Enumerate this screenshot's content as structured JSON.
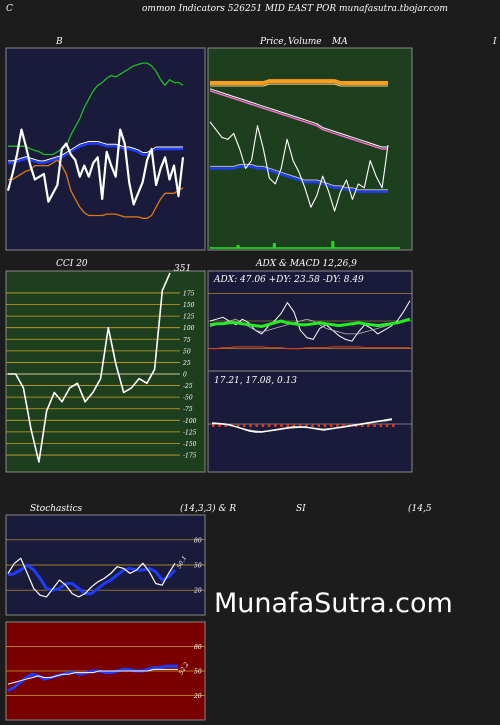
{
  "header": {
    "left_letter": "C",
    "title": "ommon  Indicators 526251 MID EAST POR munafasutra.tbojar.com"
  },
  "panels": {
    "bollinger": {
      "title": "B"
    },
    "price": {
      "title": "Price,",
      "title2": "Volume",
      "title3": "MA",
      "edge_letter": "I"
    },
    "cci": {
      "title": "CCI 20",
      "last_value": "351"
    },
    "adx": {
      "title": "ADX  & MACD 12,26,9",
      "readout": "ADX: 47.06   +DY: 23.58   -DY: 8.49"
    },
    "macd": {
      "readout": "17.21,  17.08,  0.13"
    },
    "stochastics": {
      "title": "Stochastics",
      "params": "(14,3,3) & R",
      "last_value": "50.1"
    },
    "rsi": {
      "title": "SI",
      "params": "(14,5",
      "last_value": "52.2"
    }
  },
  "watermark": "MunafaSutra.com",
  "chart_data": [
    {
      "type": "line",
      "name": "bollinger",
      "series": [
        {
          "values": [
            48,
            48,
            50,
            52,
            54,
            55,
            58,
            58,
            58,
            58,
            60,
            62,
            58,
            52,
            40,
            34,
            28,
            24,
            22,
            22,
            22,
            22,
            23,
            23,
            23,
            22,
            21,
            21,
            21,
            21,
            20,
            20,
            22,
            28,
            34,
            38,
            38,
            38,
            40,
            42
          ]
        },
        {
          "values": [
            60,
            60,
            61,
            62,
            63,
            62,
            61,
            60,
            60,
            61,
            62,
            63,
            64,
            66,
            68,
            70,
            72,
            73,
            74,
            74,
            74,
            73,
            72,
            72,
            72,
            71,
            70,
            70,
            69,
            68,
            66,
            66,
            68,
            70,
            70,
            70,
            70,
            70,
            70,
            70
          ]
        },
        {
          "values": [
            72,
            72,
            72,
            72,
            72,
            70,
            69,
            68,
            66,
            66,
            66,
            68,
            70,
            72,
            80,
            86,
            92,
            100,
            106,
            112,
            116,
            118,
            121,
            123,
            122,
            124,
            126,
            128,
            130,
            131,
            132,
            132,
            130,
            126,
            120,
            116,
            120,
            118,
            118,
            116
          ]
        },
        {
          "values": [
            40,
            52,
            66,
            84,
            72,
            58,
            48,
            50,
            52,
            32,
            38,
            44,
            70,
            74,
            66,
            62,
            50,
            58,
            50,
            60,
            64,
            34,
            68,
            58,
            50,
            84,
            74,
            46,
            30,
            38,
            46,
            62,
            70,
            44,
            56,
            64,
            48,
            58,
            36,
            64
          ]
        }
      ]
    },
    {
      "type": "line",
      "name": "price-volume-ma",
      "series": [
        {
          "values": [
            84,
            84,
            84,
            84,
            84,
            84,
            84,
            84,
            84,
            84,
            85,
            85,
            85,
            85,
            85,
            85,
            85,
            85,
            85,
            85,
            85,
            85,
            84,
            84,
            84,
            84,
            84,
            84,
            84,
            84,
            84
          ]
        },
        {
          "values": [
            80,
            79,
            78,
            77,
            76,
            75,
            74,
            73,
            72,
            71,
            70,
            69,
            68,
            67,
            66,
            65,
            64,
            63,
            62,
            60,
            59,
            58,
            57,
            56,
            55,
            54,
            53,
            52,
            51,
            50,
            50
          ]
        },
        {
          "values": [
            40,
            40,
            40,
            40,
            40,
            41,
            41,
            41,
            40,
            40,
            39,
            38,
            37,
            36,
            35,
            34,
            33,
            33,
            33,
            32,
            31,
            30,
            30,
            29,
            29,
            28,
            28,
            28,
            28,
            28,
            28
          ]
        },
        {
          "values": [
            64,
            60,
            56,
            55,
            58,
            50,
            40,
            44,
            62,
            50,
            35,
            32,
            40,
            55,
            44,
            38,
            30,
            20,
            26,
            36,
            28,
            18,
            28,
            34,
            24,
            32,
            30,
            44,
            36,
            30,
            52
          ]
        }
      ],
      "volume": [
        1,
        0,
        0,
        0,
        0,
        0,
        0,
        0,
        0,
        0,
        0,
        0,
        0,
        0,
        0,
        0,
        0,
        0,
        0,
        0,
        0,
        0,
        0,
        0,
        0,
        0,
        0,
        0,
        0,
        0,
        3,
        0,
        0,
        0,
        0,
        0,
        0,
        0,
        0,
        0,
        0,
        0,
        0,
        0,
        0,
        0,
        0,
        0,
        0,
        0,
        0,
        0,
        0,
        0,
        0,
        0,
        0,
        0,
        0,
        0,
        0,
        0,
        0,
        0,
        0,
        0,
        0,
        0,
        0,
        0,
        0,
        5,
        0,
        0,
        0,
        0,
        0,
        0,
        0,
        0,
        0,
        0,
        0,
        0,
        0,
        0,
        0,
        0,
        0,
        0,
        0,
        0,
        0,
        0,
        0,
        0,
        0,
        0,
        0,
        0,
        0,
        0,
        0,
        0,
        0,
        0,
        0,
        0,
        0,
        0,
        0,
        0,
        0,
        0,
        0,
        0,
        0,
        0,
        0,
        0,
        0,
        0,
        0,
        0,
        0,
        0,
        0,
        0,
        0,
        0,
        0,
        0,
        0,
        0,
        0,
        0,
        0,
        7,
        0,
        0,
        0,
        0,
        0,
        0,
        0,
        0,
        0,
        0,
        0,
        0,
        0,
        0,
        0,
        0,
        0,
        0,
        0,
        0,
        0,
        0,
        0,
        0,
        0,
        0,
        0,
        0,
        0,
        0,
        0,
        0,
        0,
        0,
        0,
        0,
        0,
        0,
        0,
        0,
        0,
        0,
        0,
        0,
        0,
        0,
        0,
        0,
        0,
        0,
        0,
        0,
        0,
        0,
        0,
        0,
        0,
        0,
        0,
        0,
        0,
        0,
        0,
        0
      ]
    },
    {
      "type": "line",
      "name": "cci",
      "ylim": [
        -190,
        190
      ],
      "yticks": [
        175,
        150,
        125,
        100,
        75,
        50,
        25,
        0,
        -25,
        -50,
        -75,
        -100,
        -125,
        -150,
        -175
      ],
      "values": [
        0,
        0,
        -30,
        -120,
        -190,
        -80,
        -40,
        -60,
        -30,
        -20,
        -60,
        -40,
        -10,
        100,
        20,
        -40,
        -30,
        -10,
        -20,
        10,
        180,
        351
      ]
    },
    {
      "type": "line",
      "name": "adx",
      "series": [
        {
          "values": [
            46,
            47,
            47,
            48,
            48,
            47,
            46,
            45,
            44,
            46,
            48,
            50,
            48,
            47,
            46,
            46,
            47,
            48,
            47,
            46,
            45,
            46,
            47,
            48,
            47,
            46,
            45,
            46,
            47,
            48,
            50,
            52
          ]
        },
        {
          "values": [
            50,
            52,
            54,
            50,
            46,
            52,
            48,
            40,
            36,
            44,
            50,
            58,
            70,
            60,
            40,
            32,
            30,
            42,
            46,
            40,
            34,
            30,
            28,
            38,
            46,
            42,
            36,
            40,
            44,
            50,
            60,
            72
          ]
        },
        {
          "values": [
            44,
            46,
            48,
            50,
            52,
            48,
            44,
            40,
            38,
            40,
            42,
            44,
            46,
            48,
            50,
            52,
            50,
            46,
            42,
            40,
            38,
            36,
            36,
            36,
            38,
            40,
            42,
            44,
            46,
            48,
            50,
            52
          ]
        },
        {
          "values": [
            20,
            20,
            21,
            21,
            22,
            22,
            22,
            22,
            22,
            21,
            21,
            21,
            20,
            20,
            20,
            21,
            21,
            21,
            21,
            22,
            22,
            22,
            22,
            22,
            21,
            21,
            21,
            21,
            21,
            21,
            21,
            21
          ]
        }
      ]
    },
    {
      "type": "line",
      "name": "macd",
      "series": [
        {
          "values": [
            0.2,
            0.1,
            0,
            -0.2,
            -0.6,
            -1,
            -1.4,
            -1.6,
            -1.6,
            -1.4,
            -1.2,
            -1,
            -0.8,
            -0.6,
            -0.6,
            -0.6,
            -0.8,
            -1,
            -1.2,
            -1,
            -0.8,
            -0.6,
            -0.4,
            -0.2,
            0,
            0.2,
            0.4,
            0.6,
            0.8,
            1
          ]
        },
        {
          "values": [
            0,
            0,
            -0.1,
            -0.3,
            -0.6,
            -0.9,
            -1.2,
            -1.4,
            -1.5,
            -1.4,
            -1.3,
            -1.1,
            -0.9,
            -0.8,
            -0.7,
            -0.7,
            -0.8,
            -0.9,
            -1,
            -0.9,
            -0.8,
            -0.7,
            -0.5,
            -0.3,
            -0.1,
            0.1,
            0.3,
            0.5,
            0.6,
            0.8
          ]
        }
      ],
      "histogram": [
        -0.6,
        -0.6,
        -0.6,
        -0.6,
        -0.6,
        -0.6,
        -0.6,
        -0.6,
        -0.6,
        -0.6,
        -0.6,
        -0.6,
        -0.6,
        -0.6,
        -0.6,
        -0.6,
        -0.6,
        -0.6,
        -0.6,
        -0.6,
        -0.6,
        -0.6,
        -0.6,
        -0.6,
        -0.6,
        -0.6,
        -0.6,
        -0.6,
        -0.6,
        -0.6
      ]
    },
    {
      "type": "line",
      "name": "stochastics",
      "ylim": [
        0,
        100
      ],
      "yticks": [
        80,
        50,
        20
      ],
      "series": [
        {
          "values": [
            40,
            52,
            58,
            40,
            22,
            14,
            12,
            22,
            32,
            26,
            16,
            12,
            16,
            24,
            30,
            34,
            40,
            48,
            46,
            40,
            44,
            52,
            42,
            28,
            26,
            40,
            52
          ]
        },
        {
          "values": [
            38,
            40,
            44,
            50,
            44,
            34,
            22,
            20,
            22,
            28,
            28,
            22,
            16,
            16,
            22,
            28,
            32,
            38,
            44,
            46,
            44,
            44,
            46,
            42,
            32,
            36,
            44
          ]
        }
      ],
      "last_value": 50.1
    },
    {
      "type": "line",
      "name": "rsi",
      "ylim": [
        0,
        100
      ],
      "yticks": [
        80,
        50,
        20
      ],
      "series": [
        {
          "values": [
            26,
            30,
            36,
            42,
            46,
            44,
            40,
            42,
            44,
            46,
            48,
            48,
            46,
            48,
            50,
            50,
            48,
            48,
            50,
            52,
            52,
            50,
            50,
            52,
            54,
            54,
            56,
            56,
            56
          ]
        },
        {
          "values": [
            34,
            36,
            38,
            40,
            42,
            44,
            42,
            42,
            44,
            46,
            46,
            48,
            48,
            48,
            48,
            50,
            50,
            50,
            50,
            50,
            50,
            50,
            50,
            50,
            52,
            52,
            52,
            52,
            52
          ]
        }
      ],
      "last_value": 52.2
    }
  ]
}
